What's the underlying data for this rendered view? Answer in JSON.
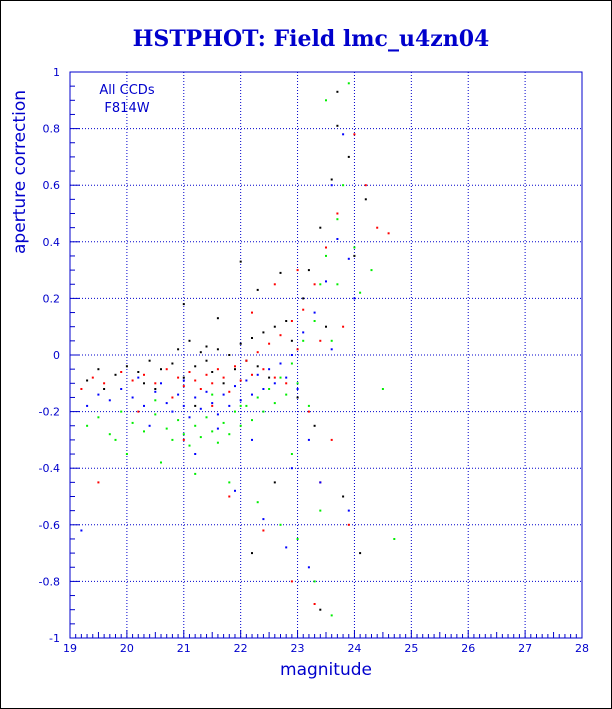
{
  "chart_data": {
    "type": "scatter",
    "title": "HSTPHOT: Field lmc_u4zn04",
    "xlabel": "magnitude",
    "ylabel": "aperture correction",
    "xlim": [
      19,
      28
    ],
    "ylim": [
      -1,
      1
    ],
    "x_ticks": [
      "19",
      "20",
      "21",
      "22",
      "23",
      "24",
      "25",
      "26",
      "27",
      "28"
    ],
    "y_ticks": [
      "-1",
      "-0.8",
      "-0.6",
      "-0.4",
      "-0.2",
      "0",
      "0.2",
      "0.4",
      "0.6",
      "0.8",
      "1"
    ],
    "x_tick_values": [
      19,
      20,
      21,
      22,
      23,
      24,
      25,
      26,
      27,
      28
    ],
    "y_tick_values": [
      -1,
      -0.8,
      -0.6,
      -0.4,
      -0.2,
      0,
      0.2,
      0.4,
      0.6,
      0.8,
      1
    ],
    "grid": true,
    "grid_style": "dotted",
    "annotations": [
      "All CCDs",
      "F814W"
    ],
    "series": [
      {
        "color": "#000000",
        "points": [
          [
            19.3,
            -0.09
          ],
          [
            19.5,
            -0.05
          ],
          [
            19.8,
            -0.07
          ],
          [
            20.0,
            -0.04
          ],
          [
            20.2,
            -0.06
          ],
          [
            20.4,
            -0.02
          ],
          [
            20.6,
            -0.05
          ],
          [
            20.8,
            -0.03
          ],
          [
            20.9,
            0.02
          ],
          [
            21.0,
            -0.08
          ],
          [
            21.1,
            0.05
          ],
          [
            21.2,
            -0.04
          ],
          [
            21.3,
            0.01
          ],
          [
            21.4,
            0.03
          ],
          [
            21.5,
            -0.06
          ],
          [
            21.6,
            0.02
          ],
          [
            21.7,
            -0.1
          ],
          [
            21.8,
            0.0
          ],
          [
            21.9,
            -0.05
          ],
          [
            22.0,
            0.04
          ],
          [
            22.1,
            -0.02
          ],
          [
            22.2,
            0.06
          ],
          [
            22.3,
            -0.04
          ],
          [
            22.4,
            0.08
          ],
          [
            22.5,
            -0.08
          ],
          [
            22.6,
            0.1
          ],
          [
            22.7,
            -0.03
          ],
          [
            22.8,
            0.12
          ],
          [
            22.9,
            0.05
          ],
          [
            23.0,
            -0.15
          ],
          [
            23.1,
            0.2
          ],
          [
            23.2,
            0.3
          ],
          [
            23.3,
            -0.25
          ],
          [
            23.4,
            0.45
          ],
          [
            23.5,
            0.1
          ],
          [
            23.6,
            0.62
          ],
          [
            23.7,
            0.81
          ],
          [
            23.8,
            -0.5
          ],
          [
            23.9,
            0.7
          ],
          [
            24.0,
            0.35
          ],
          [
            24.1,
            -0.7
          ],
          [
            24.2,
            0.55
          ],
          [
            21.0,
            0.18
          ],
          [
            21.6,
            0.13
          ],
          [
            22.0,
            0.33
          ],
          [
            22.3,
            0.23
          ],
          [
            20.5,
            -0.12
          ],
          [
            21.2,
            -0.18
          ],
          [
            22.7,
            0.29
          ],
          [
            23.4,
            -0.9
          ],
          [
            23.7,
            0.93
          ],
          [
            22.6,
            -0.45
          ],
          [
            22.2,
            -0.7
          ],
          [
            21.4,
            -0.02
          ],
          [
            20.3,
            -0.1
          ],
          [
            19.6,
            -0.12
          ]
        ]
      },
      {
        "color": "#ff0000",
        "points": [
          [
            19.2,
            -0.12
          ],
          [
            19.4,
            -0.08
          ],
          [
            19.6,
            -0.1
          ],
          [
            19.9,
            -0.06
          ],
          [
            20.1,
            -0.09
          ],
          [
            20.3,
            -0.07
          ],
          [
            20.5,
            -0.1
          ],
          [
            20.7,
            -0.05
          ],
          [
            20.9,
            -0.08
          ],
          [
            21.0,
            -0.11
          ],
          [
            21.1,
            -0.06
          ],
          [
            21.2,
            -0.09
          ],
          [
            21.3,
            -0.12
          ],
          [
            21.4,
            -0.07
          ],
          [
            21.5,
            -0.1
          ],
          [
            21.6,
            -0.05
          ],
          [
            21.7,
            -0.08
          ],
          [
            21.8,
            -0.13
          ],
          [
            21.9,
            -0.04
          ],
          [
            22.0,
            -0.09
          ],
          [
            22.1,
            -0.02
          ],
          [
            22.2,
            -0.07
          ],
          [
            22.3,
            0.01
          ],
          [
            22.4,
            -0.05
          ],
          [
            22.5,
            0.04
          ],
          [
            22.6,
            -0.08
          ],
          [
            22.7,
            0.07
          ],
          [
            22.8,
            -0.1
          ],
          [
            22.9,
            0.12
          ],
          [
            23.0,
            0.02
          ],
          [
            23.1,
            0.16
          ],
          [
            23.2,
            -0.2
          ],
          [
            23.3,
            0.25
          ],
          [
            23.4,
            0.05
          ],
          [
            23.5,
            0.38
          ],
          [
            23.6,
            -0.3
          ],
          [
            23.7,
            0.5
          ],
          [
            23.8,
            0.1
          ],
          [
            23.9,
            -0.6
          ],
          [
            24.0,
            0.78
          ],
          [
            24.2,
            0.6
          ],
          [
            24.4,
            0.45
          ],
          [
            24.6,
            0.43
          ],
          [
            19.5,
            -0.45
          ],
          [
            20.2,
            -0.2
          ],
          [
            21.0,
            -0.3
          ],
          [
            21.8,
            -0.5
          ],
          [
            22.4,
            -0.62
          ],
          [
            22.9,
            -0.8
          ],
          [
            23.3,
            -0.88
          ],
          [
            20.8,
            -0.15
          ],
          [
            21.5,
            -0.18
          ],
          [
            22.2,
            0.15
          ],
          [
            22.6,
            0.25
          ],
          [
            23.0,
            0.3
          ],
          [
            23.4,
            -0.45
          ]
        ]
      },
      {
        "color": "#0000ff",
        "points": [
          [
            19.3,
            -0.18
          ],
          [
            19.5,
            -0.14
          ],
          [
            19.7,
            -0.16
          ],
          [
            19.9,
            -0.12
          ],
          [
            20.1,
            -0.15
          ],
          [
            20.3,
            -0.18
          ],
          [
            20.5,
            -0.13
          ],
          [
            20.7,
            -0.17
          ],
          [
            20.8,
            -0.2
          ],
          [
            20.9,
            -0.14
          ],
          [
            21.0,
            -0.18
          ],
          [
            21.1,
            -0.22
          ],
          [
            21.2,
            -0.15
          ],
          [
            21.3,
            -0.19
          ],
          [
            21.4,
            -0.13
          ],
          [
            21.5,
            -0.17
          ],
          [
            21.6,
            -0.21
          ],
          [
            21.7,
            -0.14
          ],
          [
            21.8,
            -0.18
          ],
          [
            21.9,
            -0.11
          ],
          [
            22.0,
            -0.16
          ],
          [
            22.1,
            -0.09
          ],
          [
            22.2,
            -0.14
          ],
          [
            22.3,
            -0.07
          ],
          [
            22.4,
            -0.12
          ],
          [
            22.5,
            -0.05
          ],
          [
            22.6,
            -0.1
          ],
          [
            22.7,
            -0.03
          ],
          [
            22.8,
            -0.08
          ],
          [
            22.9,
            0.0
          ],
          [
            23.0,
            -0.12
          ],
          [
            23.1,
            0.08
          ],
          [
            23.2,
            -0.3
          ],
          [
            23.3,
            0.15
          ],
          [
            23.4,
            -0.45
          ],
          [
            23.5,
            0.26
          ],
          [
            23.6,
            0.02
          ],
          [
            23.7,
            0.41
          ],
          [
            23.8,
            0.78
          ],
          [
            23.9,
            -0.55
          ],
          [
            24.0,
            0.2
          ],
          [
            19.2,
            -0.62
          ],
          [
            20.4,
            -0.25
          ],
          [
            21.2,
            -0.35
          ],
          [
            21.9,
            -0.48
          ],
          [
            22.4,
            -0.58
          ],
          [
            22.8,
            -0.68
          ],
          [
            23.2,
            -0.75
          ],
          [
            21.0,
            -0.09
          ],
          [
            21.6,
            -0.26
          ],
          [
            22.2,
            -0.3
          ],
          [
            22.9,
            -0.4
          ],
          [
            20.6,
            -0.1
          ],
          [
            20.2,
            -0.08
          ],
          [
            23.6,
            0.6
          ],
          [
            23.9,
            0.34
          ]
        ]
      },
      {
        "color": "#00ee00",
        "points": [
          [
            19.3,
            -0.25
          ],
          [
            19.5,
            -0.22
          ],
          [
            19.7,
            -0.28
          ],
          [
            19.9,
            -0.2
          ],
          [
            20.1,
            -0.24
          ],
          [
            20.3,
            -0.27
          ],
          [
            20.5,
            -0.21
          ],
          [
            20.7,
            -0.26
          ],
          [
            20.8,
            -0.3
          ],
          [
            20.9,
            -0.23
          ],
          [
            21.0,
            -0.28
          ],
          [
            21.1,
            -0.32
          ],
          [
            21.2,
            -0.25
          ],
          [
            21.3,
            -0.29
          ],
          [
            21.4,
            -0.22
          ],
          [
            21.5,
            -0.27
          ],
          [
            21.6,
            -0.31
          ],
          [
            21.7,
            -0.24
          ],
          [
            21.8,
            -0.28
          ],
          [
            21.9,
            -0.2
          ],
          [
            22.0,
            -0.25
          ],
          [
            22.1,
            -0.18
          ],
          [
            22.2,
            -0.23
          ],
          [
            22.3,
            -0.15
          ],
          [
            22.4,
            -0.2
          ],
          [
            22.5,
            -0.12
          ],
          [
            22.6,
            -0.17
          ],
          [
            22.7,
            -0.08
          ],
          [
            22.8,
            -0.14
          ],
          [
            22.9,
            -0.03
          ],
          [
            23.0,
            -0.1
          ],
          [
            23.1,
            0.05
          ],
          [
            23.2,
            -0.18
          ],
          [
            23.3,
            0.12
          ],
          [
            23.4,
            0.25
          ],
          [
            23.5,
            0.35
          ],
          [
            23.6,
            0.05
          ],
          [
            23.7,
            0.48
          ],
          [
            23.8,
            0.6
          ],
          [
            23.9,
            0.96
          ],
          [
            24.1,
            0.22
          ],
          [
            24.3,
            0.3
          ],
          [
            24.5,
            -0.12
          ],
          [
            24.7,
            -0.65
          ],
          [
            23.5,
            0.9
          ],
          [
            20.0,
            -0.35
          ],
          [
            20.6,
            -0.38
          ],
          [
            21.2,
            -0.42
          ],
          [
            21.8,
            -0.45
          ],
          [
            22.3,
            -0.52
          ],
          [
            22.7,
            -0.6
          ],
          [
            23.0,
            -0.65
          ],
          [
            23.3,
            -0.8
          ],
          [
            23.6,
            -0.92
          ],
          [
            23.4,
            -0.55
          ],
          [
            22.9,
            -0.35
          ],
          [
            22.0,
            -0.18
          ],
          [
            21.5,
            -0.14
          ],
          [
            20.5,
            -0.16
          ],
          [
            19.8,
            -0.3
          ],
          [
            24.0,
            0.38
          ],
          [
            23.7,
            0.25
          ]
        ]
      }
    ]
  }
}
